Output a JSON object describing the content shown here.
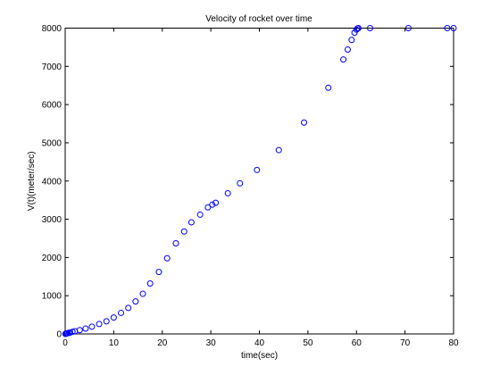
{
  "chart_data": {
    "type": "scatter",
    "title": "Velocity of rocket over time",
    "xlabel": "time(sec)",
    "ylabel": "V(t)(meter/sec)",
    "xlim": [
      0,
      80
    ],
    "ylim": [
      0,
      8000
    ],
    "xticks": [
      0,
      10,
      20,
      30,
      40,
      50,
      60,
      70,
      80
    ],
    "yticks": [
      0,
      1000,
      2000,
      3000,
      4000,
      5000,
      6000,
      7000,
      8000
    ],
    "grid": false,
    "legend": "none",
    "marker": "circle-open",
    "colors": {
      "marker": "#0000ff",
      "axes": "#000000",
      "background": "#ffffff"
    },
    "series": [
      {
        "x": [
          0.05,
          0.1,
          0.2,
          0.35,
          0.5,
          0.8,
          1.0,
          1.5,
          2.0,
          3.0,
          4.2,
          5.5,
          7.0,
          8.5,
          10.0,
          11.5,
          13.0,
          14.5,
          16.0,
          17.5,
          19.3,
          21.0,
          22.8,
          24.5,
          26.0,
          27.8,
          29.4,
          30.3,
          31.0,
          33.5,
          36.0,
          39.5,
          44.0,
          49.2,
          54.2,
          57.3,
          58.2,
          59.0,
          59.6,
          60.0,
          60.2,
          60.4,
          62.8,
          70.7,
          78.7,
          80.0
        ],
        "y": [
          0,
          5,
          10,
          15,
          20,
          30,
          35,
          55,
          70,
          100,
          140,
          190,
          260,
          330,
          430,
          550,
          680,
          850,
          1050,
          1320,
          1620,
          1980,
          2370,
          2680,
          2920,
          3120,
          3310,
          3380,
          3430,
          3680,
          3940,
          4290,
          4810,
          5530,
          6440,
          7180,
          7440,
          7690,
          7880,
          7960,
          7990,
          8000,
          8000,
          8000,
          8000,
          8000
        ]
      }
    ]
  }
}
